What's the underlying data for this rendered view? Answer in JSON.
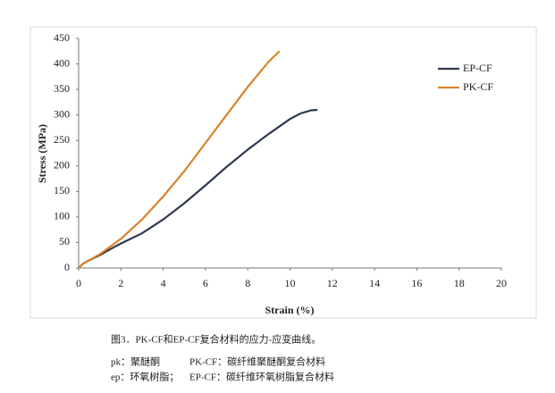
{
  "chart_data": {
    "type": "line",
    "x_label": "Strain (%)",
    "y_label": "Stress (MPa)",
    "xlim": [
      0,
      20
    ],
    "xticks": [
      0,
      2,
      4,
      6,
      8,
      10,
      12,
      14,
      16,
      18,
      20
    ],
    "ylim": [
      0,
      450
    ],
    "yticks": [
      0,
      50,
      100,
      150,
      200,
      250,
      300,
      350,
      400,
      450
    ],
    "grid": false,
    "legend": "right",
    "series": [
      {
        "name": "EP-CF",
        "color": "#2f3a4f",
        "x": [
          0,
          0.2,
          0.5,
          1,
          1.5,
          2,
          3,
          4,
          5,
          6,
          7,
          8,
          9,
          10,
          10.5,
          11,
          11.3
        ],
        "values": [
          0,
          8,
          15,
          25,
          37,
          48,
          68,
          95,
          127,
          162,
          198,
          232,
          263,
          292,
          303,
          309,
          310
        ]
      },
      {
        "name": "PK-CF",
        "color": "#d9822b",
        "x": [
          0,
          0.2,
          0.5,
          1,
          1.5,
          2,
          3,
          4,
          5,
          6,
          7,
          8,
          9,
          9.5
        ],
        "values": [
          0,
          8,
          15,
          27,
          42,
          57,
          95,
          140,
          190,
          245,
          300,
          355,
          405,
          425
        ]
      }
    ]
  },
  "caption": {
    "title": "图3．PK-CF和EP-CF复合材料的应力-应变曲线。",
    "notes": [
      [
        "pk：聚醚酮",
        "PK-CF：碳纤维聚醚酮复合材料"
      ],
      [
        "ep：环氧树脂；",
        "EP-CF：碳纤维环氧树脂复合材料"
      ]
    ]
  }
}
